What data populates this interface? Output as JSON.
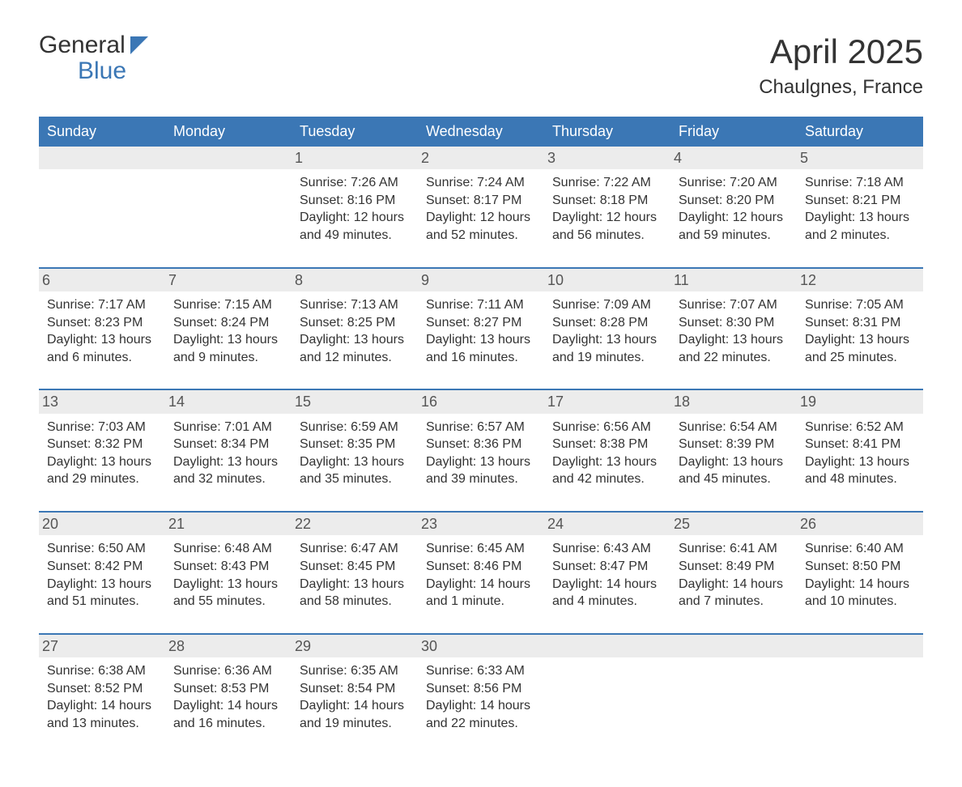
{
  "logo": {
    "word1": "General",
    "word2": "Blue"
  },
  "title": "April 2025",
  "location": "Chaulgnes, France",
  "theme": {
    "primary": "#3b77b5",
    "row_bg": "#ececec",
    "text": "#333333",
    "bg": "#ffffff",
    "header_font_size": 18,
    "title_font_size": 42,
    "location_font_size": 24,
    "cell_font_size": 16
  },
  "day_headers": [
    "Sunday",
    "Monday",
    "Tuesday",
    "Wednesday",
    "Thursday",
    "Friday",
    "Saturday"
  ],
  "weeks": [
    [
      {
        "day": "",
        "sunrise": "",
        "sunset": "",
        "daylight1": "",
        "daylight2": ""
      },
      {
        "day": "",
        "sunrise": "",
        "sunset": "",
        "daylight1": "",
        "daylight2": ""
      },
      {
        "day": "1",
        "sunrise": "Sunrise: 7:26 AM",
        "sunset": "Sunset: 8:16 PM",
        "daylight1": "Daylight: 12 hours",
        "daylight2": "and 49 minutes."
      },
      {
        "day": "2",
        "sunrise": "Sunrise: 7:24 AM",
        "sunset": "Sunset: 8:17 PM",
        "daylight1": "Daylight: 12 hours",
        "daylight2": "and 52 minutes."
      },
      {
        "day": "3",
        "sunrise": "Sunrise: 7:22 AM",
        "sunset": "Sunset: 8:18 PM",
        "daylight1": "Daylight: 12 hours",
        "daylight2": "and 56 minutes."
      },
      {
        "day": "4",
        "sunrise": "Sunrise: 7:20 AM",
        "sunset": "Sunset: 8:20 PM",
        "daylight1": "Daylight: 12 hours",
        "daylight2": "and 59 minutes."
      },
      {
        "day": "5",
        "sunrise": "Sunrise: 7:18 AM",
        "sunset": "Sunset: 8:21 PM",
        "daylight1": "Daylight: 13 hours",
        "daylight2": "and 2 minutes."
      }
    ],
    [
      {
        "day": "6",
        "sunrise": "Sunrise: 7:17 AM",
        "sunset": "Sunset: 8:23 PM",
        "daylight1": "Daylight: 13 hours",
        "daylight2": "and 6 minutes."
      },
      {
        "day": "7",
        "sunrise": "Sunrise: 7:15 AM",
        "sunset": "Sunset: 8:24 PM",
        "daylight1": "Daylight: 13 hours",
        "daylight2": "and 9 minutes."
      },
      {
        "day": "8",
        "sunrise": "Sunrise: 7:13 AM",
        "sunset": "Sunset: 8:25 PM",
        "daylight1": "Daylight: 13 hours",
        "daylight2": "and 12 minutes."
      },
      {
        "day": "9",
        "sunrise": "Sunrise: 7:11 AM",
        "sunset": "Sunset: 8:27 PM",
        "daylight1": "Daylight: 13 hours",
        "daylight2": "and 16 minutes."
      },
      {
        "day": "10",
        "sunrise": "Sunrise: 7:09 AM",
        "sunset": "Sunset: 8:28 PM",
        "daylight1": "Daylight: 13 hours",
        "daylight2": "and 19 minutes."
      },
      {
        "day": "11",
        "sunrise": "Sunrise: 7:07 AM",
        "sunset": "Sunset: 8:30 PM",
        "daylight1": "Daylight: 13 hours",
        "daylight2": "and 22 minutes."
      },
      {
        "day": "12",
        "sunrise": "Sunrise: 7:05 AM",
        "sunset": "Sunset: 8:31 PM",
        "daylight1": "Daylight: 13 hours",
        "daylight2": "and 25 minutes."
      }
    ],
    [
      {
        "day": "13",
        "sunrise": "Sunrise: 7:03 AM",
        "sunset": "Sunset: 8:32 PM",
        "daylight1": "Daylight: 13 hours",
        "daylight2": "and 29 minutes."
      },
      {
        "day": "14",
        "sunrise": "Sunrise: 7:01 AM",
        "sunset": "Sunset: 8:34 PM",
        "daylight1": "Daylight: 13 hours",
        "daylight2": "and 32 minutes."
      },
      {
        "day": "15",
        "sunrise": "Sunrise: 6:59 AM",
        "sunset": "Sunset: 8:35 PM",
        "daylight1": "Daylight: 13 hours",
        "daylight2": "and 35 minutes."
      },
      {
        "day": "16",
        "sunrise": "Sunrise: 6:57 AM",
        "sunset": "Sunset: 8:36 PM",
        "daylight1": "Daylight: 13 hours",
        "daylight2": "and 39 minutes."
      },
      {
        "day": "17",
        "sunrise": "Sunrise: 6:56 AM",
        "sunset": "Sunset: 8:38 PM",
        "daylight1": "Daylight: 13 hours",
        "daylight2": "and 42 minutes."
      },
      {
        "day": "18",
        "sunrise": "Sunrise: 6:54 AM",
        "sunset": "Sunset: 8:39 PM",
        "daylight1": "Daylight: 13 hours",
        "daylight2": "and 45 minutes."
      },
      {
        "day": "19",
        "sunrise": "Sunrise: 6:52 AM",
        "sunset": "Sunset: 8:41 PM",
        "daylight1": "Daylight: 13 hours",
        "daylight2": "and 48 minutes."
      }
    ],
    [
      {
        "day": "20",
        "sunrise": "Sunrise: 6:50 AM",
        "sunset": "Sunset: 8:42 PM",
        "daylight1": "Daylight: 13 hours",
        "daylight2": "and 51 minutes."
      },
      {
        "day": "21",
        "sunrise": "Sunrise: 6:48 AM",
        "sunset": "Sunset: 8:43 PM",
        "daylight1": "Daylight: 13 hours",
        "daylight2": "and 55 minutes."
      },
      {
        "day": "22",
        "sunrise": "Sunrise: 6:47 AM",
        "sunset": "Sunset: 8:45 PM",
        "daylight1": "Daylight: 13 hours",
        "daylight2": "and 58 minutes."
      },
      {
        "day": "23",
        "sunrise": "Sunrise: 6:45 AM",
        "sunset": "Sunset: 8:46 PM",
        "daylight1": "Daylight: 14 hours",
        "daylight2": "and 1 minute."
      },
      {
        "day": "24",
        "sunrise": "Sunrise: 6:43 AM",
        "sunset": "Sunset: 8:47 PM",
        "daylight1": "Daylight: 14 hours",
        "daylight2": "and 4 minutes."
      },
      {
        "day": "25",
        "sunrise": "Sunrise: 6:41 AM",
        "sunset": "Sunset: 8:49 PM",
        "daylight1": "Daylight: 14 hours",
        "daylight2": "and 7 minutes."
      },
      {
        "day": "26",
        "sunrise": "Sunrise: 6:40 AM",
        "sunset": "Sunset: 8:50 PM",
        "daylight1": "Daylight: 14 hours",
        "daylight2": "and 10 minutes."
      }
    ],
    [
      {
        "day": "27",
        "sunrise": "Sunrise: 6:38 AM",
        "sunset": "Sunset: 8:52 PM",
        "daylight1": "Daylight: 14 hours",
        "daylight2": "and 13 minutes."
      },
      {
        "day": "28",
        "sunrise": "Sunrise: 6:36 AM",
        "sunset": "Sunset: 8:53 PM",
        "daylight1": "Daylight: 14 hours",
        "daylight2": "and 16 minutes."
      },
      {
        "day": "29",
        "sunrise": "Sunrise: 6:35 AM",
        "sunset": "Sunset: 8:54 PM",
        "daylight1": "Daylight: 14 hours",
        "daylight2": "and 19 minutes."
      },
      {
        "day": "30",
        "sunrise": "Sunrise: 6:33 AM",
        "sunset": "Sunset: 8:56 PM",
        "daylight1": "Daylight: 14 hours",
        "daylight2": "and 22 minutes."
      },
      {
        "day": "",
        "sunrise": "",
        "sunset": "",
        "daylight1": "",
        "daylight2": ""
      },
      {
        "day": "",
        "sunrise": "",
        "sunset": "",
        "daylight1": "",
        "daylight2": ""
      },
      {
        "day": "",
        "sunrise": "",
        "sunset": "",
        "daylight1": "",
        "daylight2": ""
      }
    ]
  ]
}
